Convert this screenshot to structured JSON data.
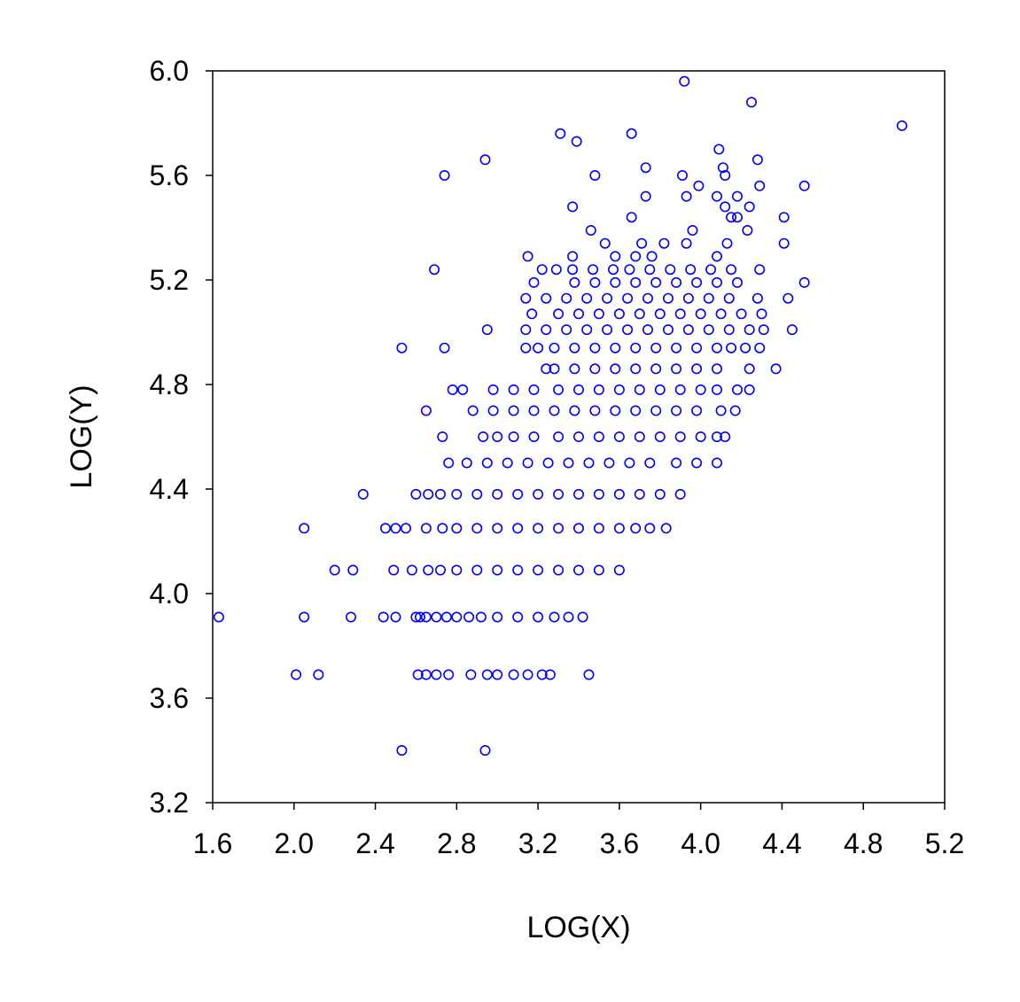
{
  "chart_data": {
    "type": "scatter",
    "title": "",
    "xlabel": "LOG(X)",
    "ylabel": "LOG(Y)",
    "xlim": [
      1.6,
      5.2
    ],
    "ylim": [
      3.2,
      6.0
    ],
    "x_ticks": [
      "1.6",
      "2.0",
      "2.4",
      "2.8",
      "3.2",
      "3.6",
      "4.0",
      "4.4",
      "4.8",
      "5.2"
    ],
    "y_ticks": [
      "6.0",
      "5.6",
      "5.2",
      "4.8",
      "4.4",
      "4.0",
      "3.6",
      "3.2"
    ],
    "grid": false,
    "marker": "open-circle",
    "marker_color": "#0000ff",
    "series": [
      {
        "points": [
          [
            1.63,
            3.91
          ],
          [
            2.05,
            3.91
          ],
          [
            2.28,
            3.91
          ],
          [
            2.44,
            3.91
          ],
          [
            2.5,
            3.91
          ],
          [
            2.6,
            3.91
          ],
          [
            2.62,
            3.91
          ],
          [
            2.65,
            3.91
          ],
          [
            2.7,
            3.91
          ],
          [
            2.75,
            3.91
          ],
          [
            2.8,
            3.91
          ],
          [
            2.86,
            3.91
          ],
          [
            2.92,
            3.91
          ],
          [
            3.0,
            3.91
          ],
          [
            3.1,
            3.91
          ],
          [
            3.2,
            3.91
          ],
          [
            3.28,
            3.91
          ],
          [
            3.35,
            3.91
          ],
          [
            3.42,
            3.91
          ],
          [
            2.01,
            3.69
          ],
          [
            2.12,
            3.69
          ],
          [
            2.61,
            3.69
          ],
          [
            2.65,
            3.69
          ],
          [
            2.7,
            3.69
          ],
          [
            2.76,
            3.69
          ],
          [
            2.87,
            3.69
          ],
          [
            2.95,
            3.69
          ],
          [
            3.0,
            3.69
          ],
          [
            3.08,
            3.69
          ],
          [
            3.15,
            3.69
          ],
          [
            3.22,
            3.69
          ],
          [
            3.26,
            3.69
          ],
          [
            3.45,
            3.69
          ],
          [
            2.53,
            3.4
          ],
          [
            2.94,
            3.4
          ],
          [
            2.2,
            4.09
          ],
          [
            2.29,
            4.09
          ],
          [
            2.49,
            4.09
          ],
          [
            2.58,
            4.09
          ],
          [
            2.66,
            4.09
          ],
          [
            2.72,
            4.09
          ],
          [
            2.8,
            4.09
          ],
          [
            2.9,
            4.09
          ],
          [
            3.0,
            4.09
          ],
          [
            3.1,
            4.09
          ],
          [
            3.2,
            4.09
          ],
          [
            3.3,
            4.09
          ],
          [
            3.4,
            4.09
          ],
          [
            3.5,
            4.09
          ],
          [
            3.6,
            4.09
          ],
          [
            2.05,
            4.25
          ],
          [
            2.45,
            4.25
          ],
          [
            2.5,
            4.25
          ],
          [
            2.55,
            4.25
          ],
          [
            2.65,
            4.25
          ],
          [
            2.73,
            4.25
          ],
          [
            2.8,
            4.25
          ],
          [
            2.9,
            4.25
          ],
          [
            3.0,
            4.25
          ],
          [
            3.1,
            4.25
          ],
          [
            3.2,
            4.25
          ],
          [
            3.3,
            4.25
          ],
          [
            3.4,
            4.25
          ],
          [
            3.5,
            4.25
          ],
          [
            3.6,
            4.25
          ],
          [
            3.68,
            4.25
          ],
          [
            3.75,
            4.25
          ],
          [
            3.83,
            4.25
          ],
          [
            2.34,
            4.38
          ],
          [
            2.6,
            4.38
          ],
          [
            2.66,
            4.38
          ],
          [
            2.72,
            4.38
          ],
          [
            2.8,
            4.38
          ],
          [
            2.9,
            4.38
          ],
          [
            3.0,
            4.38
          ],
          [
            3.1,
            4.38
          ],
          [
            3.2,
            4.38
          ],
          [
            3.3,
            4.38
          ],
          [
            3.4,
            4.38
          ],
          [
            3.5,
            4.38
          ],
          [
            3.6,
            4.38
          ],
          [
            3.7,
            4.38
          ],
          [
            3.8,
            4.38
          ],
          [
            3.9,
            4.38
          ],
          [
            2.76,
            4.5
          ],
          [
            2.85,
            4.5
          ],
          [
            2.95,
            4.5
          ],
          [
            3.05,
            4.5
          ],
          [
            3.15,
            4.5
          ],
          [
            3.25,
            4.5
          ],
          [
            3.35,
            4.5
          ],
          [
            3.45,
            4.5
          ],
          [
            3.55,
            4.5
          ],
          [
            3.65,
            4.5
          ],
          [
            3.75,
            4.5
          ],
          [
            3.88,
            4.5
          ],
          [
            3.98,
            4.5
          ],
          [
            4.08,
            4.5
          ],
          [
            2.73,
            4.6
          ],
          [
            2.93,
            4.6
          ],
          [
            3.0,
            4.6
          ],
          [
            3.08,
            4.6
          ],
          [
            3.18,
            4.6
          ],
          [
            3.3,
            4.6
          ],
          [
            3.4,
            4.6
          ],
          [
            3.5,
            4.6
          ],
          [
            3.6,
            4.6
          ],
          [
            3.7,
            4.6
          ],
          [
            3.8,
            4.6
          ],
          [
            3.9,
            4.6
          ],
          [
            4.0,
            4.6
          ],
          [
            4.08,
            4.6
          ],
          [
            4.12,
            4.6
          ],
          [
            2.65,
            4.7
          ],
          [
            2.88,
            4.7
          ],
          [
            2.98,
            4.7
          ],
          [
            3.08,
            4.7
          ],
          [
            3.18,
            4.7
          ],
          [
            3.28,
            4.7
          ],
          [
            3.38,
            4.7
          ],
          [
            3.48,
            4.7
          ],
          [
            3.58,
            4.7
          ],
          [
            3.68,
            4.7
          ],
          [
            3.78,
            4.7
          ],
          [
            3.88,
            4.7
          ],
          [
            3.98,
            4.7
          ],
          [
            4.1,
            4.7
          ],
          [
            4.17,
            4.7
          ],
          [
            2.78,
            4.78
          ],
          [
            2.83,
            4.78
          ],
          [
            2.98,
            4.78
          ],
          [
            3.08,
            4.78
          ],
          [
            3.18,
            4.78
          ],
          [
            3.3,
            4.78
          ],
          [
            3.4,
            4.78
          ],
          [
            3.5,
            4.78
          ],
          [
            3.6,
            4.78
          ],
          [
            3.7,
            4.78
          ],
          [
            3.8,
            4.78
          ],
          [
            3.9,
            4.78
          ],
          [
            4.0,
            4.78
          ],
          [
            4.08,
            4.78
          ],
          [
            4.18,
            4.78
          ],
          [
            4.24,
            4.78
          ],
          [
            3.24,
            4.86
          ],
          [
            3.28,
            4.86
          ],
          [
            3.38,
            4.86
          ],
          [
            3.48,
            4.86
          ],
          [
            3.58,
            4.86
          ],
          [
            3.68,
            4.86
          ],
          [
            3.78,
            4.86
          ],
          [
            3.88,
            4.86
          ],
          [
            3.98,
            4.86
          ],
          [
            4.08,
            4.86
          ],
          [
            4.24,
            4.86
          ],
          [
            4.37,
            4.86
          ],
          [
            2.53,
            4.94
          ],
          [
            2.74,
            4.94
          ],
          [
            3.14,
            4.94
          ],
          [
            3.2,
            4.94
          ],
          [
            3.28,
            4.94
          ],
          [
            3.38,
            4.94
          ],
          [
            3.48,
            4.94
          ],
          [
            3.58,
            4.94
          ],
          [
            3.68,
            4.94
          ],
          [
            3.78,
            4.94
          ],
          [
            3.88,
            4.94
          ],
          [
            3.98,
            4.94
          ],
          [
            4.08,
            4.94
          ],
          [
            4.15,
            4.94
          ],
          [
            4.22,
            4.94
          ],
          [
            4.29,
            4.94
          ],
          [
            2.95,
            5.01
          ],
          [
            3.14,
            5.01
          ],
          [
            3.24,
            5.01
          ],
          [
            3.34,
            5.01
          ],
          [
            3.44,
            5.01
          ],
          [
            3.54,
            5.01
          ],
          [
            3.64,
            5.01
          ],
          [
            3.74,
            5.01
          ],
          [
            3.84,
            5.01
          ],
          [
            3.94,
            5.01
          ],
          [
            4.04,
            5.01
          ],
          [
            4.14,
            5.01
          ],
          [
            4.24,
            5.01
          ],
          [
            4.31,
            5.01
          ],
          [
            4.45,
            5.01
          ],
          [
            3.17,
            5.07
          ],
          [
            3.3,
            5.07
          ],
          [
            3.4,
            5.07
          ],
          [
            3.5,
            5.07
          ],
          [
            3.6,
            5.07
          ],
          [
            3.7,
            5.07
          ],
          [
            3.8,
            5.07
          ],
          [
            3.9,
            5.07
          ],
          [
            4.0,
            5.07
          ],
          [
            4.1,
            5.07
          ],
          [
            4.2,
            5.07
          ],
          [
            4.3,
            5.07
          ],
          [
            3.14,
            5.13
          ],
          [
            3.24,
            5.13
          ],
          [
            3.34,
            5.13
          ],
          [
            3.44,
            5.13
          ],
          [
            3.54,
            5.13
          ],
          [
            3.64,
            5.13
          ],
          [
            3.74,
            5.13
          ],
          [
            3.84,
            5.13
          ],
          [
            3.94,
            5.13
          ],
          [
            4.04,
            5.13
          ],
          [
            4.14,
            5.13
          ],
          [
            4.28,
            5.13
          ],
          [
            4.43,
            5.13
          ],
          [
            3.18,
            5.19
          ],
          [
            3.38,
            5.19
          ],
          [
            3.48,
            5.19
          ],
          [
            3.58,
            5.19
          ],
          [
            3.68,
            5.19
          ],
          [
            3.78,
            5.19
          ],
          [
            3.88,
            5.19
          ],
          [
            3.98,
            5.19
          ],
          [
            4.08,
            5.19
          ],
          [
            4.18,
            5.19
          ],
          [
            4.51,
            5.19
          ],
          [
            2.69,
            5.24
          ],
          [
            3.22,
            5.24
          ],
          [
            3.29,
            5.24
          ],
          [
            3.37,
            5.24
          ],
          [
            3.47,
            5.24
          ],
          [
            3.57,
            5.24
          ],
          [
            3.65,
            5.24
          ],
          [
            3.75,
            5.24
          ],
          [
            3.85,
            5.24
          ],
          [
            3.95,
            5.24
          ],
          [
            4.05,
            5.24
          ],
          [
            4.15,
            5.24
          ],
          [
            4.29,
            5.24
          ],
          [
            3.15,
            5.29
          ],
          [
            3.37,
            5.29
          ],
          [
            3.58,
            5.29
          ],
          [
            3.68,
            5.29
          ],
          [
            3.76,
            5.29
          ],
          [
            4.08,
            5.29
          ],
          [
            3.53,
            5.34
          ],
          [
            3.71,
            5.34
          ],
          [
            3.82,
            5.34
          ],
          [
            3.93,
            5.34
          ],
          [
            4.13,
            5.34
          ],
          [
            4.41,
            5.34
          ],
          [
            3.46,
            5.39
          ],
          [
            3.96,
            5.39
          ],
          [
            4.23,
            5.39
          ],
          [
            3.66,
            5.44
          ],
          [
            4.15,
            5.44
          ],
          [
            4.18,
            5.44
          ],
          [
            4.41,
            5.44
          ],
          [
            3.37,
            5.48
          ],
          [
            4.12,
            5.48
          ],
          [
            4.24,
            5.48
          ],
          [
            3.73,
            5.52
          ],
          [
            3.93,
            5.52
          ],
          [
            4.08,
            5.52
          ],
          [
            4.18,
            5.52
          ],
          [
            3.99,
            5.56
          ],
          [
            4.29,
            5.56
          ],
          [
            4.51,
            5.56
          ],
          [
            2.74,
            5.6
          ],
          [
            3.48,
            5.6
          ],
          [
            3.91,
            5.6
          ],
          [
            4.12,
            5.6
          ],
          [
            3.73,
            5.63
          ],
          [
            4.11,
            5.63
          ],
          [
            2.94,
            5.66
          ],
          [
            4.28,
            5.66
          ],
          [
            4.09,
            5.7
          ],
          [
            3.39,
            5.73
          ],
          [
            3.31,
            5.76
          ],
          [
            3.66,
            5.76
          ],
          [
            4.99,
            5.79
          ],
          [
            4.25,
            5.88
          ],
          [
            3.92,
            5.96
          ]
        ]
      }
    ]
  }
}
